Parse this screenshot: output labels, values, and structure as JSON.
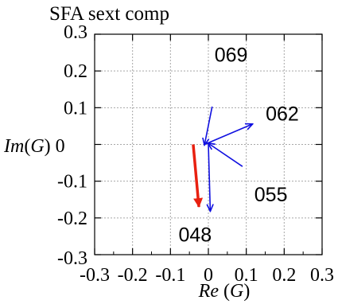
{
  "chart_data": {
    "type": "vector-field",
    "title": "SFA sext comp",
    "xlabel": "Re (G)",
    "ylabel": "Im(G) 0",
    "xlim": [
      -0.3,
      0.3
    ],
    "ylim": [
      -0.3,
      0.3
    ],
    "x_ticks": [
      "-0.3",
      "-0.2",
      "-0.1",
      "0",
      "0.1",
      "0.2",
      "0.3"
    ],
    "y_ticks": [
      "0.3",
      "0.2",
      "0.1",
      "-0.1",
      "-0.2",
      "-0.3"
    ],
    "grid": true,
    "colors": {
      "series": "#1010e0",
      "sum": "#e82010",
      "grid": "#a8a8a8"
    },
    "vectors": [
      {
        "from": [
          0.01,
          0.103
        ],
        "to": [
          -0.01,
          0.0
        ]
      },
      {
        "from": [
          -0.01,
          0.0
        ],
        "to": [
          0.115,
          0.055
        ]
      },
      {
        "from": [
          0.09,
          -0.06
        ],
        "to": [
          0.0,
          0.003
        ]
      },
      {
        "from": [
          0.0,
          0.0
        ],
        "to": [
          0.005,
          -0.18
        ]
      }
    ],
    "sum_vector": {
      "from": [
        -0.04,
        0.0
      ],
      "to": [
        -0.025,
        -0.17
      ]
    },
    "annotations": [
      {
        "text": "069",
        "x": 0.06,
        "y": 0.245
      },
      {
        "text": "062",
        "x": 0.195,
        "y": 0.085
      },
      {
        "text": "055",
        "x": 0.165,
        "y": -0.135
      },
      {
        "text": "048",
        "x": -0.035,
        "y": -0.245
      }
    ]
  }
}
